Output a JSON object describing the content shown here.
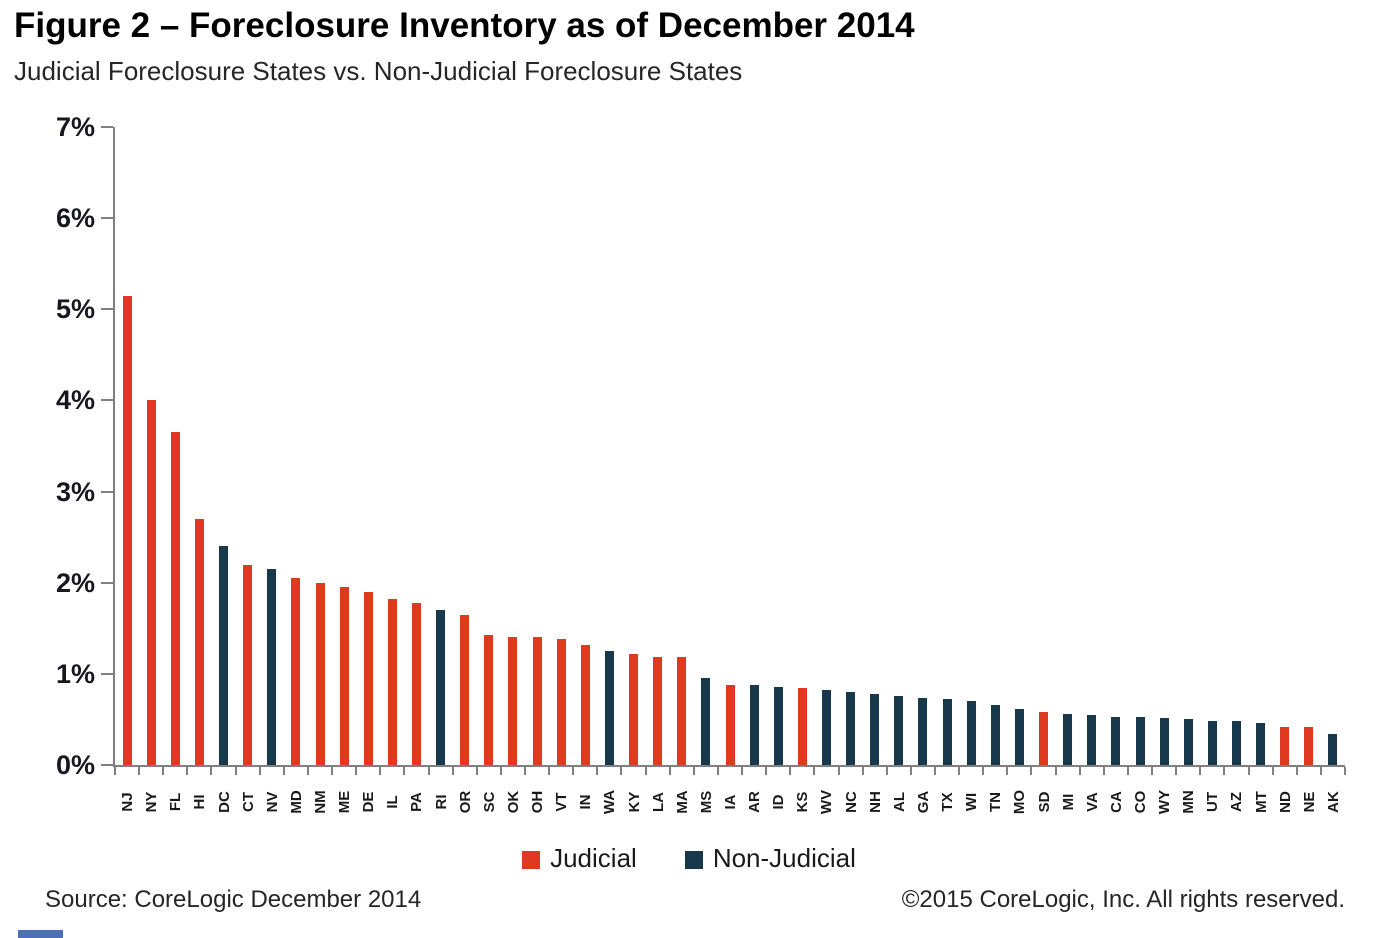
{
  "header": {
    "title": "Figure 2 – Foreclosure Inventory as of December 2014",
    "subtitle": "Judicial Foreclosure States vs. Non-Judicial Foreclosure States"
  },
  "legend": {
    "items": [
      {
        "label": "Judicial",
        "color": "#DF3A21"
      },
      {
        "label": "Non-Judicial",
        "color": "#17394B"
      }
    ]
  },
  "footer": {
    "source": "Source: CoreLogic December 2014",
    "copyright": "©2015 CoreLogic, Inc. All rights reserved."
  },
  "colors": {
    "judicial": "#DF3A21",
    "non_judicial": "#17394B",
    "axis": "#808080",
    "corner_chip": "#4A70B8"
  },
  "chart_data": {
    "type": "bar",
    "title": "Figure 2 – Foreclosure Inventory as of December 2014",
    "subtitle": "Judicial Foreclosure States vs. Non-Judicial Foreclosure States",
    "xlabel": "",
    "ylabel": "",
    "unit": "%",
    "ylim": [
      0,
      7
    ],
    "ytick_labels": [
      "7%",
      "6%",
      "5%",
      "4%",
      "3%",
      "2%",
      "1%",
      "0%"
    ],
    "grid": false,
    "legend_position": "bottom",
    "series_names": [
      "Judicial",
      "Non-Judicial"
    ],
    "categories": [
      "NJ",
      "NY",
      "FL",
      "HI",
      "DC",
      "CT",
      "NV",
      "MD",
      "NM",
      "ME",
      "DE",
      "IL",
      "PA",
      "RI",
      "OR",
      "SC",
      "OK",
      "OH",
      "VT",
      "IN",
      "WA",
      "KY",
      "LA",
      "MA",
      "MS",
      "IA",
      "AR",
      "ID",
      "KS",
      "WV",
      "NC",
      "NH",
      "AL",
      "GA",
      "TX",
      "WI",
      "TN",
      "MO",
      "SD",
      "MI",
      "VA",
      "CA",
      "CO",
      "WY",
      "MN",
      "UT",
      "AZ",
      "MT",
      "ND",
      "NE",
      "AK"
    ],
    "values": [
      5.15,
      4.0,
      3.65,
      2.7,
      2.4,
      2.2,
      2.15,
      2.05,
      2.0,
      1.95,
      1.9,
      1.82,
      1.78,
      1.7,
      1.65,
      1.43,
      1.4,
      1.4,
      1.38,
      1.32,
      1.25,
      1.22,
      1.18,
      1.18,
      0.95,
      0.88,
      0.88,
      0.86,
      0.85,
      0.82,
      0.8,
      0.78,
      0.76,
      0.74,
      0.72,
      0.7,
      0.66,
      0.61,
      0.58,
      0.56,
      0.55,
      0.53,
      0.53,
      0.52,
      0.5,
      0.48,
      0.48,
      0.46,
      0.42,
      0.42,
      0.34
    ],
    "types": [
      "judicial",
      "judicial",
      "judicial",
      "judicial",
      "non_judicial",
      "judicial",
      "non_judicial",
      "judicial",
      "judicial",
      "judicial",
      "judicial",
      "judicial",
      "judicial",
      "non_judicial",
      "judicial",
      "judicial",
      "judicial",
      "judicial",
      "judicial",
      "judicial",
      "non_judicial",
      "judicial",
      "judicial",
      "judicial",
      "non_judicial",
      "judicial",
      "non_judicial",
      "non_judicial",
      "judicial",
      "non_judicial",
      "non_judicial",
      "non_judicial",
      "non_judicial",
      "non_judicial",
      "non_judicial",
      "non_judicial",
      "non_judicial",
      "non_judicial",
      "judicial",
      "non_judicial",
      "non_judicial",
      "non_judicial",
      "non_judicial",
      "non_judicial",
      "non_judicial",
      "non_judicial",
      "non_judicial",
      "non_judicial",
      "judicial",
      "judicial",
      "non_judicial"
    ]
  }
}
